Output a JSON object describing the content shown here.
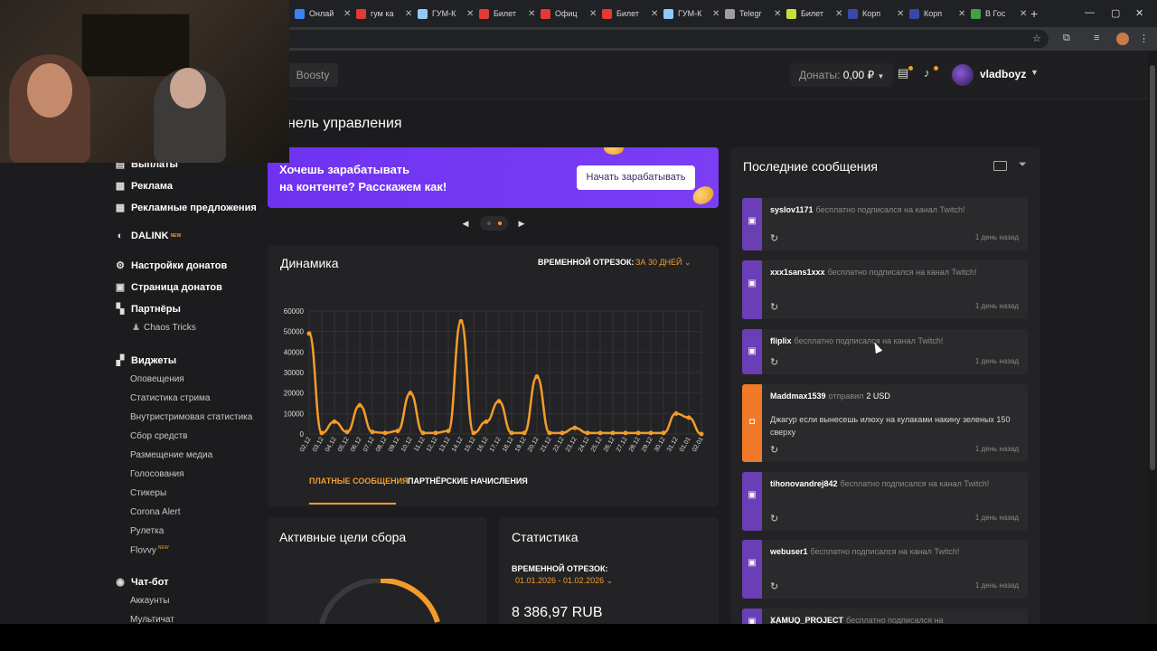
{
  "browser": {
    "tabs": [
      {
        "label": "Онлай",
        "color": "#3b82f6"
      },
      {
        "label": "гум ка",
        "color": "#e53935"
      },
      {
        "label": "ГУМ-К",
        "color": "#90caf9"
      },
      {
        "label": "Билет",
        "color": "#e53935"
      },
      {
        "label": "Офиц",
        "color": "#e53935"
      },
      {
        "label": "Билет",
        "color": "#e53935"
      },
      {
        "label": "ГУМ-К",
        "color": "#90caf9"
      },
      {
        "label": "Telegr",
        "color": "#9e9e9e"
      },
      {
        "label": "Билет",
        "color": "#c6e03a"
      },
      {
        "label": "Корп",
        "color": "#3949ab"
      },
      {
        "label": "Корп",
        "color": "#3949ab"
      },
      {
        "label": "В Гос",
        "color": "#43a047"
      }
    ],
    "close_glyph": "✕",
    "new_tab_glyph": "+"
  },
  "header": {
    "boosty_label": "Boosty",
    "donates_label": "Донаты:",
    "donates_amount": "0,00 ₽",
    "username": "vladboyz"
  },
  "sidebar": {
    "items": [
      {
        "label": "Выплаты",
        "icon": "wallet-icon",
        "glyph": "▤"
      },
      {
        "label": "Реклама",
        "icon": "ads-icon",
        "glyph": "▦"
      },
      {
        "label": "Рекламные предложения",
        "icon": "offers-icon",
        "glyph": "▦"
      },
      {
        "label": "DALINK",
        "icon": "dalink-icon",
        "glyph": "◐",
        "badge": "NEW"
      },
      {
        "label": "Настройки донатов",
        "icon": "gear-icon",
        "glyph": "⚙"
      },
      {
        "label": "Страница донатов",
        "icon": "page-icon",
        "glyph": "▣"
      },
      {
        "label": "Партнёры",
        "icon": "partners-icon",
        "glyph": "▚"
      },
      {
        "label": "Виджеты",
        "icon": "widgets-icon",
        "glyph": "▞"
      },
      {
        "label": "Чат-бот",
        "icon": "chatbot-icon",
        "glyph": "◉"
      }
    ],
    "partner_sub": "Chaos Tricks",
    "widgets_sub": [
      "Оповещения",
      "Статистика стрима",
      "Внутристримовая статистика",
      "Сбор средств",
      "Размещение медиа",
      "Голосования",
      "Стикеры",
      "Corona Alert",
      "Рулетка",
      "Flovvy"
    ],
    "flovvy_badge": "NEW",
    "chatbot_sub": [
      "Аккаунты",
      "Мультичат"
    ]
  },
  "page_title": "нель управления",
  "banner": {
    "text_line1": "Хочешь зарабатывать",
    "text_line2": "на контенте? Расскажем как!",
    "button": "Начать зарабатывать"
  },
  "dynamics": {
    "title": "Динамика",
    "period_label": "ВРЕМЕННОЙ ОТРЕЗОК:",
    "period_value": "ЗА 30 ДНЕЙ",
    "tab_paid": "ПЛАТНЫЕ СООБЩЕНИЯ",
    "tab_partner": "ПАРТНЁРСКИЕ НАЧИСЛЕНИЯ"
  },
  "chart_data": {
    "type": "line",
    "title": "",
    "xlabel": "",
    "ylabel": "",
    "ylim": [
      0,
      60000
    ],
    "yticks": [
      0,
      10000,
      20000,
      30000,
      40000,
      50000,
      60000
    ],
    "x": [
      "02.12",
      "03.12",
      "04.12",
      "05.12",
      "06.12",
      "07.12",
      "08.12",
      "09.12",
      "10.12",
      "11.12",
      "12.12",
      "13.12",
      "14.12",
      "15.12",
      "16.12",
      "17.12",
      "18.12",
      "19.12",
      "20.12",
      "21.12",
      "22.12",
      "23.12",
      "24.12",
      "25.12",
      "26.12",
      "27.12",
      "28.12",
      "29.12",
      "30.12",
      "31.12",
      "01.01",
      "02.01"
    ],
    "series": [
      {
        "values": [
          49000,
          500,
          6000,
          1000,
          14000,
          1000,
          500,
          1500,
          20000,
          500,
          500,
          1500,
          55000,
          500,
          6000,
          16000,
          500,
          500,
          28000,
          500,
          500,
          3000,
          500,
          500,
          500,
          500,
          500,
          500,
          500,
          10000,
          8000,
          0
        ]
      }
    ],
    "grid": true,
    "line_color": "#f39c2a"
  },
  "goals": {
    "title": "Активные цели сбора"
  },
  "stats": {
    "title": "Статистика",
    "period_label": "ВРЕМЕННОЙ ОТРЕЗОК:",
    "period_value": "01.01.2026 - 01.02.2026",
    "value": "8 386,97 RUB"
  },
  "messages": {
    "title": "Последние сообщения",
    "items": [
      {
        "name": "syslov1171",
        "text": "бесплатно подписался на канал Twitch!",
        "time": "1 день назад"
      },
      {
        "name": "xxx1sans1xxx",
        "text": "бесплатно подписался на канал Twitch!",
        "time": "1 день назад"
      },
      {
        "name": "fliplix",
        "text": "бесплатно подписался на канал Twitch!",
        "time": "1 день назад"
      },
      {
        "name": "Maddmax1539",
        "text": "отправил",
        "amount": "2 USD",
        "body": "Джагур если вынесешь илюху на кулаками накину зеленых 150 сверху",
        "time": "1 день назад"
      },
      {
        "name": "tihonovandrej842",
        "text": "бесплатно подписался на канал Twitch!",
        "time": "1 день назад"
      },
      {
        "name": "webuser1",
        "text": "бесплатно подписался на канал Twitch!",
        "time": "1 день назад"
      },
      {
        "name": "XAMUQ_PROJECT",
        "text": "бесплатно подписался на",
        "time": ""
      }
    ]
  }
}
